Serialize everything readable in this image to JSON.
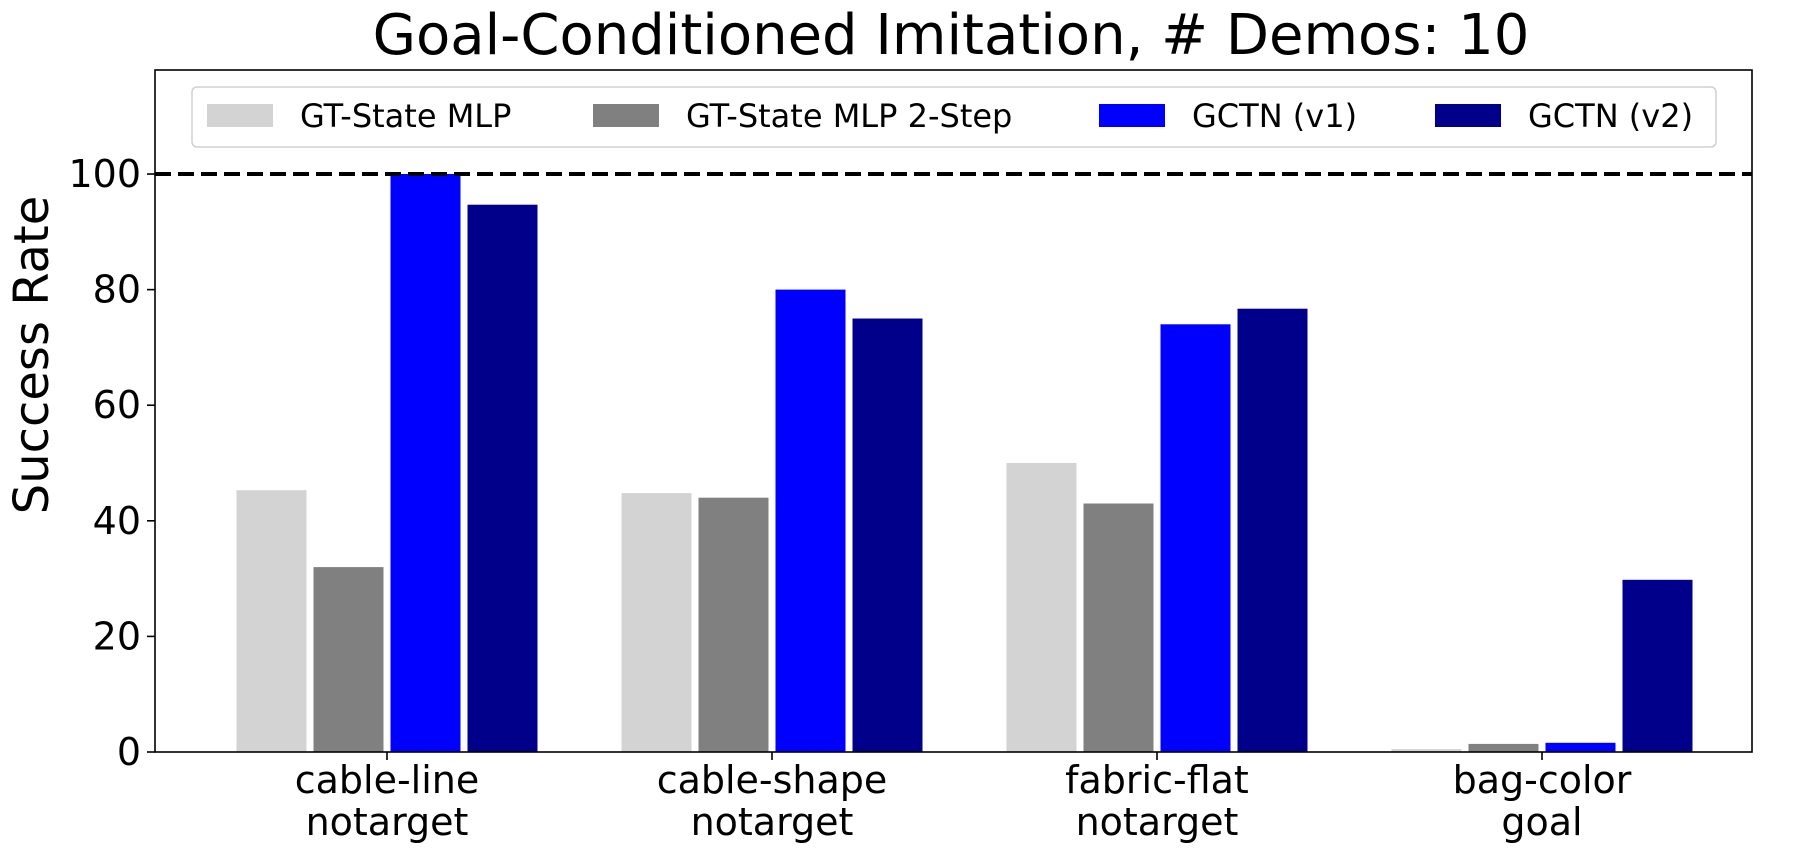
{
  "chart_data": {
    "type": "bar",
    "title": "Goal-Conditioned Imitation, # Demos: 10",
    "xlabel": "",
    "ylabel": "Success Rate",
    "ylim": [
      0,
      118
    ],
    "yticks": [
      0,
      20,
      40,
      60,
      80,
      100
    ],
    "categories": [
      [
        "cable-line",
        "notarget"
      ],
      [
        "cable-shape",
        "notarget"
      ],
      [
        "fabric-flat",
        "notarget"
      ],
      [
        "bag-color",
        "goal"
      ]
    ],
    "series": [
      {
        "name": "GT-State MLP",
        "color": "#d3d3d3",
        "values": [
          45.3,
          44.8,
          50.0,
          0.5
        ]
      },
      {
        "name": "GT-State MLP 2-Step",
        "color": "#808080",
        "values": [
          32.0,
          44.0,
          43.0,
          1.4
        ]
      },
      {
        "name": "GCTN (v1)",
        "color": "#0000ff",
        "values": [
          100.0,
          80.0,
          74.0,
          1.6
        ]
      },
      {
        "name": "GCTN (v2)",
        "color": "#00008b",
        "values": [
          94.7,
          75.0,
          76.7,
          29.8
        ]
      }
    ],
    "reference_line": {
      "y": 100,
      "style": "dashed",
      "color": "#000000"
    },
    "legend": {
      "placement": "top",
      "ncol": 4
    },
    "grid": false
  }
}
